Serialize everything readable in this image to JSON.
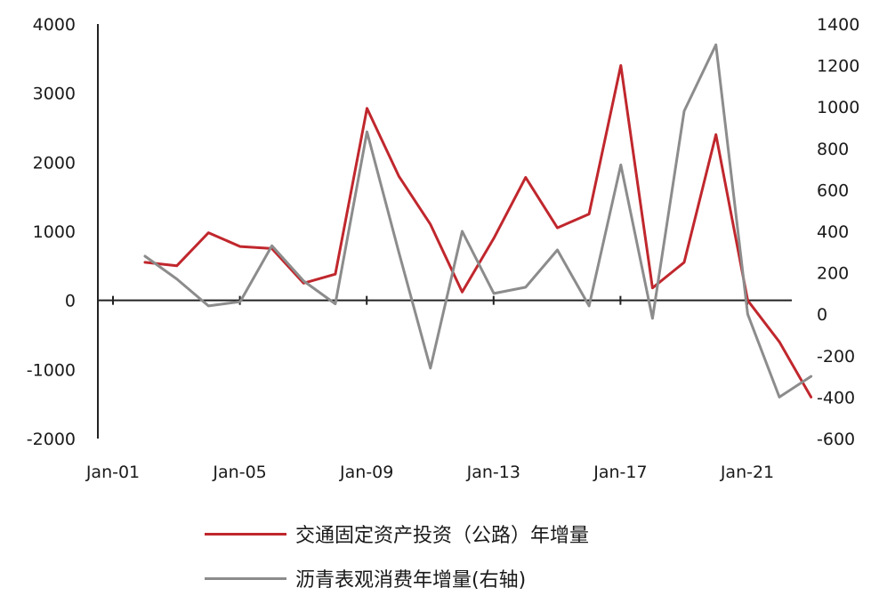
{
  "chart_data": {
    "type": "line",
    "x": [
      "2002",
      "2003",
      "2004",
      "2005",
      "2006",
      "2007",
      "2008",
      "2009",
      "2010",
      "2011",
      "2012",
      "2013",
      "2014",
      "2015",
      "2016",
      "2017",
      "2018",
      "2019",
      "2020",
      "2021",
      "2022",
      "2023"
    ],
    "x_tick_labels": [
      "Jan-01",
      "Jan-05",
      "Jan-09",
      "Jan-13",
      "Jan-17",
      "Jan-21"
    ],
    "left_axis": {
      "ylim": [
        -2000,
        4000
      ],
      "ticks": [
        "4000",
        "3000",
        "2000",
        "1000",
        "0",
        "-1000",
        "-2000"
      ]
    },
    "right_axis": {
      "ylim": [
        -600,
        1400
      ],
      "ticks": [
        "1400",
        "1200",
        "1000",
        "800",
        "600",
        "400",
        "200",
        "0",
        "-200",
        "-400",
        "-600"
      ]
    },
    "series": [
      {
        "name": "交通固定资产投资（公路）年增量",
        "axis": "left",
        "color": "#c0272d",
        "values": [
          550,
          500,
          980,
          780,
          750,
          250,
          380,
          2780,
          1800,
          1100,
          120,
          900,
          1780,
          1050,
          1250,
          3400,
          180,
          550,
          2400,
          0,
          -600,
          -1400
        ]
      },
      {
        "name": "沥青表观消费年增量(右轴)",
        "axis": "right",
        "color": "#8c8c8c",
        "values": [
          280,
          170,
          40,
          60,
          330,
          160,
          50,
          880,
          300,
          -260,
          400,
          100,
          130,
          310,
          40,
          720,
          -20,
          980,
          1300,
          0,
          -400,
          -300
        ]
      }
    ]
  }
}
